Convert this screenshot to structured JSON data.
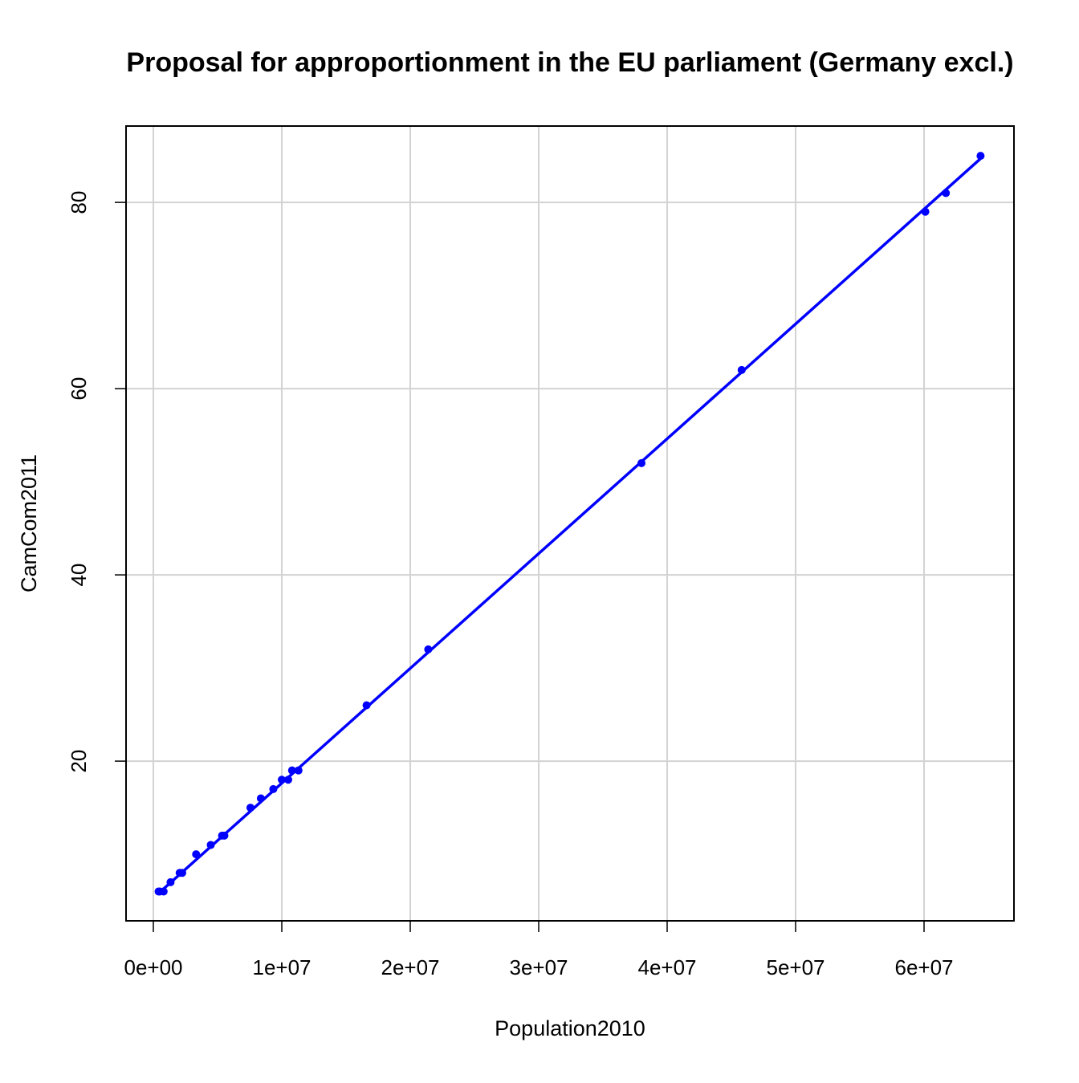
{
  "chart_data": {
    "type": "scatter",
    "title": "Proposal for approportionment in the EU parliament (Germany excl.)",
    "xlabel": "Population2010",
    "ylabel": "CamCom2011",
    "color": "#0000ff",
    "grid": true,
    "x": [
      410000,
      500000,
      800000,
      1340000,
      2050000,
      2250000,
      3330000,
      4470000,
      5350000,
      5530000,
      7560000,
      8370000,
      9340000,
      10000000,
      10500000,
      10800000,
      11300000,
      16600000,
      21400000,
      38000000,
      45800000,
      60100000,
      61700000,
      64400000
    ],
    "values": [
      6,
      6,
      6,
      7,
      8,
      8,
      10,
      11,
      12,
      12,
      15,
      16,
      17,
      18,
      18,
      19,
      19,
      26,
      32,
      52,
      62,
      79,
      81,
      85
    ],
    "trend": {
      "x": [
        400000,
        64400000
      ],
      "values": [
        5.8,
        84.7
      ]
    },
    "xlim": [
      -2125000,
      67000000
    ],
    "ylim": [
      2.85,
      88.2
    ],
    "xticks": [
      {
        "value": 0,
        "label": "0e+00"
      },
      {
        "value": 10000000,
        "label": "1e+07"
      },
      {
        "value": 20000000,
        "label": "2e+07"
      },
      {
        "value": 30000000,
        "label": "3e+07"
      },
      {
        "value": 40000000,
        "label": "4e+07"
      },
      {
        "value": 50000000,
        "label": "5e+07"
      },
      {
        "value": 60000000,
        "label": "6e+07"
      }
    ],
    "yticks": [
      20,
      40,
      60,
      80
    ]
  }
}
